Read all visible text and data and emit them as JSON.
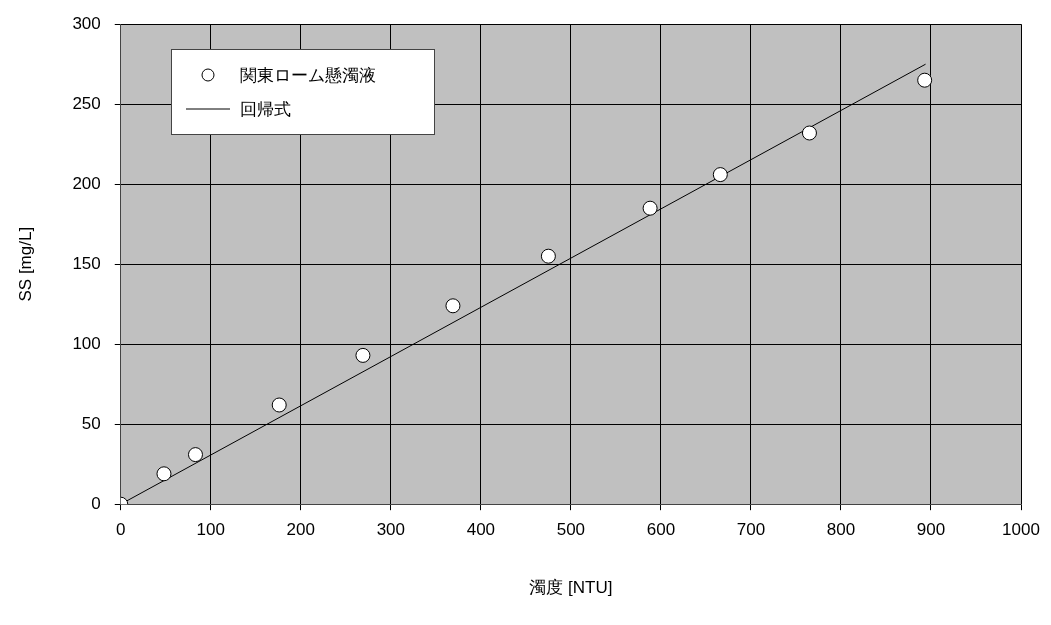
{
  "chart_data": {
    "type": "scatter",
    "xlabel": "濁度 [NTU]",
    "ylabel": "SS [mg/L]",
    "xlim": [
      0,
      1000
    ],
    "xticks": [
      0,
      100,
      200,
      300,
      400,
      500,
      600,
      700,
      800,
      900,
      1000
    ],
    "ylim": [
      0,
      300
    ],
    "yticks": [
      0,
      50,
      100,
      150,
      200,
      250,
      300
    ],
    "grid": true,
    "legend": "top left",
    "series": [
      {
        "name": "関東ローム懸濁液",
        "marker": "circle",
        "color": "#000000",
        "x": [
          0,
          48,
          83,
          176,
          269,
          369,
          475,
          588,
          666,
          765,
          893
        ],
        "values": [
          0,
          19,
          31,
          62,
          93,
          124,
          155,
          185,
          206,
          232,
          265
        ]
      },
      {
        "name": "回帰式",
        "type": "line",
        "marker": "none",
        "line_style": "solid",
        "color": "#000000",
        "x": [
          0,
          894
        ],
        "values": [
          0,
          275
        ]
      }
    ]
  }
}
